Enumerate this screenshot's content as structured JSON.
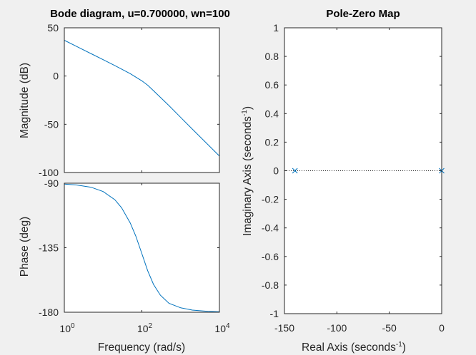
{
  "colors": {
    "background": "#f0f0f0",
    "axes_bg": "#ffffff",
    "axis": "#262626",
    "series": "#0072bd",
    "dotted": "#262626"
  },
  "chart_data": [
    {
      "type": "line",
      "title": "Bode diagram, u=0.700000, wn=100",
      "xlabel": "",
      "ylabel": "Magnitude (dB)",
      "xscale": "log",
      "xlim": [
        1,
        10000
      ],
      "ylim": [
        -100,
        50
      ],
      "yticks": [
        "50",
        "0",
        "-50",
        "-100"
      ],
      "grid": false,
      "series": [
        {
          "x": [
            1,
            2,
            5,
            10,
            20,
            50,
            100,
            141,
            200,
            500,
            1000,
            2000,
            5000,
            10000
          ],
          "values": [
            37.1,
            31.0,
            23.0,
            17.0,
            10.9,
            2.5,
            -5.0,
            -9.5,
            -15.2,
            -30.6,
            -42.9,
            -55.0,
            -70.9,
            -82.9
          ]
        }
      ]
    },
    {
      "type": "line",
      "xlabel": "Frequency  (rad/s)",
      "ylabel": "Phase (deg)",
      "xscale": "log",
      "xlim": [
        1,
        10000
      ],
      "ylim": [
        -180,
        -90
      ],
      "yticks": [
        "-90",
        "-135",
        "-180"
      ],
      "xticks": [
        {
          "base": "10",
          "exp": "0"
        },
        {
          "base": "10",
          "exp": "2"
        },
        {
          "base": "10",
          "exp": "4"
        }
      ],
      "grid": false,
      "series": [
        {
          "x": [
            1,
            2,
            5,
            10,
            20,
            30,
            50,
            70,
            100,
            141,
            200,
            300,
            500,
            1000,
            2000,
            5000,
            10000
          ],
          "values": [
            -90.6,
            -91.2,
            -92.9,
            -95.8,
            -101.5,
            -107.1,
            -117.7,
            -127.0,
            -139.2,
            -151.0,
            -160.6,
            -168.1,
            -173.8,
            -176.9,
            -178.5,
            -179.4,
            -179.7
          ]
        }
      ]
    },
    {
      "type": "scatter",
      "title": "Pole-Zero Map",
      "xlabel": "Real Axis (seconds",
      "xlabel_sup": "-1",
      "xlabel_end": ")",
      "ylabel": "Imaginary Axis (seconds",
      "ylabel_sup": "-1",
      "ylabel_end": ")",
      "xlim": [
        -150,
        0
      ],
      "ylim": [
        -1,
        1
      ],
      "xticks": [
        "-150",
        "-100",
        "-50",
        "0"
      ],
      "yticks": [
        "1",
        "0.8",
        "0.6",
        "0.4",
        "0.2",
        "0",
        "-0.2",
        "-0.4",
        "-0.6",
        "-0.8",
        "-1"
      ],
      "grid": false,
      "poles": [
        {
          "x": -140,
          "y": 0
        },
        {
          "x": 0,
          "y": 0
        }
      ]
    }
  ]
}
